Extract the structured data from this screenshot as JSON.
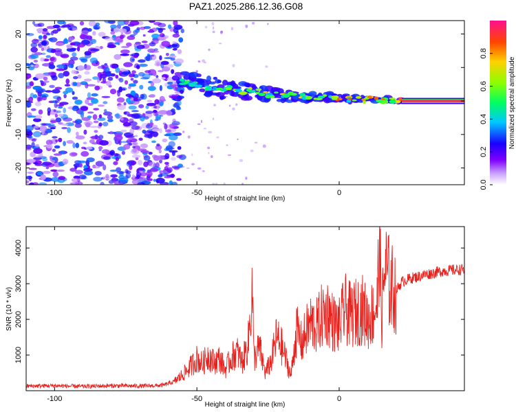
{
  "title": "PAZ1.2025.286.12.36.G08",
  "chart_data": [
    {
      "type": "heatmap",
      "title": "PAZ1.2025.286.12.36.G08",
      "xlabel": "Height of straight line (km)",
      "ylabel": "Frequency (Hz)",
      "xlim": [
        -110,
        44
      ],
      "ylim": [
        -25,
        24
      ],
      "xticks": [
        -100,
        -50,
        0
      ],
      "yticks": [
        20,
        10,
        0,
        -10,
        -20
      ],
      "noise_region": {
        "x": [
          -110,
          -55
        ],
        "y": [
          -25,
          24
        ],
        "amplitude": [
          0.05,
          0.35
        ]
      },
      "transition_points": [
        {
          "x": -54,
          "y": 5.5
        },
        {
          "x": -50,
          "y": 5.0
        },
        {
          "x": -45,
          "y": 4.0
        },
        {
          "x": -40,
          "y": 3.5
        },
        {
          "x": -35,
          "y": 3.0
        },
        {
          "x": -30,
          "y": 3.0
        },
        {
          "x": -25,
          "y": 2.0
        },
        {
          "x": -20,
          "y": 1.8
        },
        {
          "x": -15,
          "y": 1.5
        },
        {
          "x": -10,
          "y": 1.0
        },
        {
          "x": -5,
          "y": 1.2
        },
        {
          "x": 0,
          "y": 0.8
        },
        {
          "x": 5,
          "y": 0.6
        },
        {
          "x": 10,
          "y": 0.5
        },
        {
          "x": 15,
          "y": 0.4
        },
        {
          "x": 20,
          "y": 0.2
        }
      ],
      "steady_signal": {
        "x": [
          22,
          44
        ],
        "y": 0.0,
        "amplitude": 0.95
      },
      "colorbar": {
        "label": "Normalized spectral amplitude",
        "range": [
          0.0,
          1.0
        ],
        "ticks": [
          "0.0",
          "0.2",
          "0.4",
          "0.6",
          "0.8"
        ]
      }
    },
    {
      "type": "line",
      "xlabel": "Height of straight line (km)",
      "ylabel": "SNR (10 * v/v)",
      "xlim": [
        -110,
        44
      ],
      "ylim": [
        0,
        4600
      ],
      "xticks": [
        -100,
        -50,
        0
      ],
      "yticks": [
        1000,
        2000,
        3000,
        4000
      ],
      "series": [
        {
          "name": "SNR",
          "color": "#e8211c",
          "x": [
            -110,
            -100,
            -90,
            -80,
            -70,
            -62,
            -58,
            -55,
            -52,
            -50,
            -48,
            -46,
            -44,
            -42,
            -40,
            -38,
            -36,
            -34,
            -32,
            -30.5,
            -30,
            -28,
            -26,
            -24,
            -22,
            -20,
            -18,
            -17,
            -15,
            -13,
            -12,
            -10,
            -8,
            -6,
            -4,
            -2,
            0,
            2,
            4,
            6,
            8,
            10,
            12,
            13.5,
            14,
            15,
            16,
            18,
            20,
            22,
            25,
            28,
            30,
            33,
            36,
            40,
            44
          ],
          "values": [
            130,
            140,
            120,
            140,
            130,
            150,
            250,
            450,
            700,
            900,
            750,
            1000,
            800,
            900,
            600,
            900,
            1100,
            800,
            1300,
            2900,
            900,
            1200,
            500,
            800,
            1500,
            1200,
            700,
            400,
            1700,
            1300,
            1600,
            1900,
            1800,
            2100,
            2200,
            1900,
            1800,
            2300,
            2100,
            2200,
            2300,
            2000,
            2200,
            2500,
            4300,
            2000,
            3500,
            2900,
            2800,
            3050,
            3150,
            3200,
            3250,
            3300,
            3350,
            3380,
            3400
          ]
        }
      ]
    }
  ]
}
